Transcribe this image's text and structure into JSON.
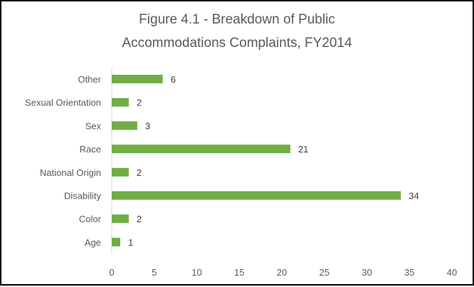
{
  "chart_data": {
    "type": "bar",
    "orientation": "horizontal",
    "title_lines": [
      "Figure 4.1 - Breakdown of Public",
      "Accommodations Complaints, FY2014"
    ],
    "categories": [
      "Other",
      "Sexual Orientation",
      "Sex",
      "Race",
      "National Origin",
      "Disability",
      "Color",
      "Age"
    ],
    "values": [
      6,
      2,
      3,
      21,
      2,
      34,
      2,
      1
    ],
    "xlim": [
      0,
      40
    ],
    "xticks": [
      "0",
      "5",
      "10",
      "15",
      "20",
      "25",
      "30",
      "35",
      "40"
    ],
    "data_labels": true,
    "grid": false,
    "legend": "none",
    "bar_color": "#70ad47",
    "text_color": "#595959",
    "border_color": "#000000"
  }
}
